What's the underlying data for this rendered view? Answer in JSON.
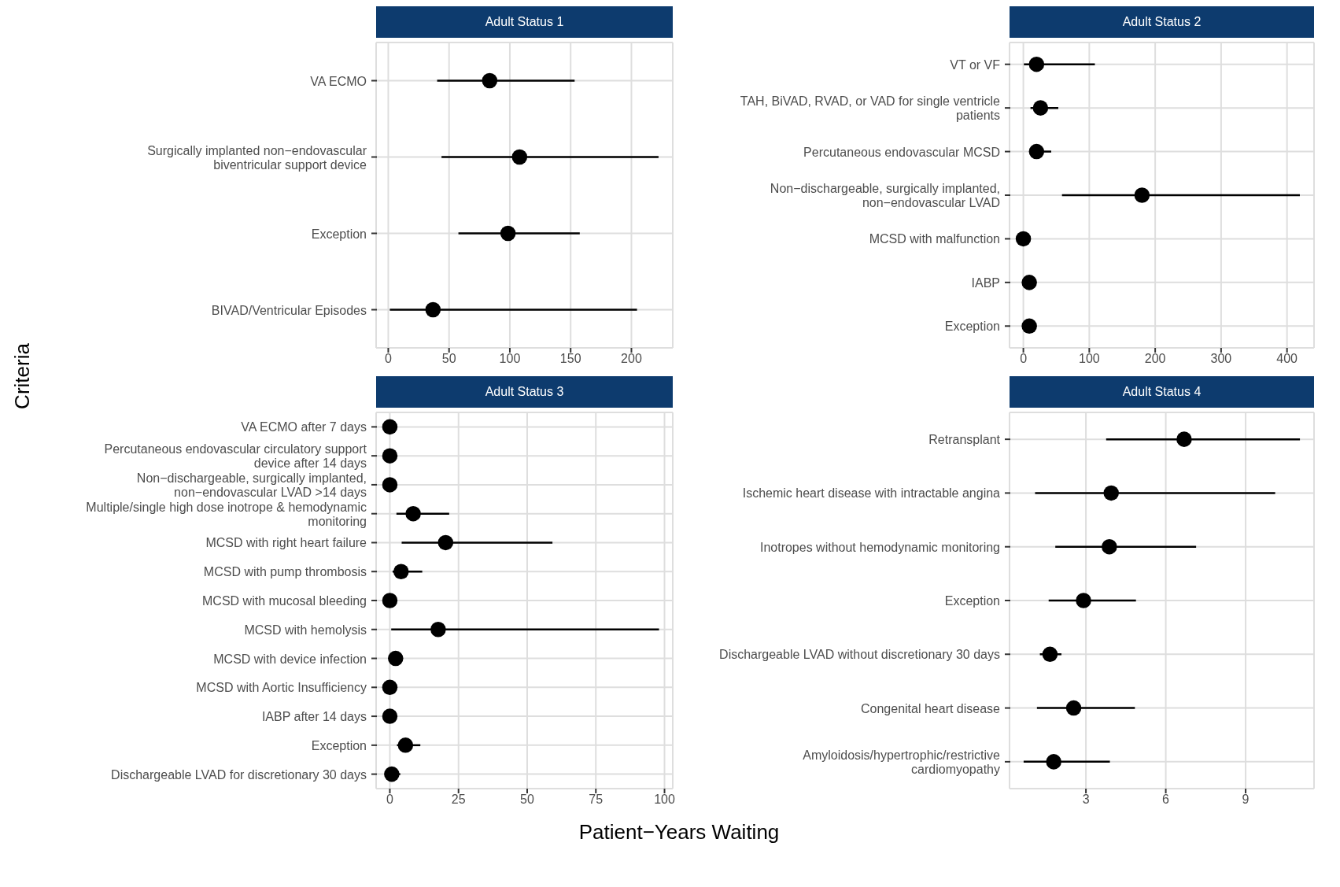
{
  "chart_data": [
    {
      "type": "scatter",
      "orientation": "horizontal",
      "title": "Adult Status 1",
      "ylabel": "Criteria",
      "categories": [
        "VA ECMO",
        "Surgically implanted non−endovascular biventricular support device",
        "Exception",
        "BIVAD/Ventricular Episodes"
      ],
      "values": [
        83.4,
        108,
        98.5,
        36.8
      ],
      "errors": [
        [
          40.2,
          153.3
        ],
        [
          43.8,
          222.3
        ],
        [
          57.7,
          157.5
        ],
        [
          1.3,
          204.6
        ]
      ],
      "color": "#000000",
      "marker": "circle",
      "xlim": [
        -10,
        234
      ],
      "xticks": [
        0,
        50,
        100,
        150,
        200
      ],
      "grid": true
    },
    {
      "type": "scatter",
      "orientation": "horizontal",
      "title": "Adult Status 2",
      "categories": [
        "VT or VF",
        "TAH, BiVAD, RVAD, or VAD for single ventricle patients",
        "Percutaneous endovascular MCSD",
        "Non−dischargeable, surgically implanted, non−endovascular LVAD",
        "MCSD with malfunction",
        "IABP",
        "Exception"
      ],
      "values": [
        20,
        26,
        20,
        180,
        0,
        9,
        9
      ],
      "errors": [
        [
          0.8,
          108.5
        ],
        [
          10.8,
          53
        ],
        [
          12,
          42.3
        ],
        [
          58.6,
          419.5
        ],
        null,
        null,
        null
      ],
      "color": "#000000",
      "marker": "circle",
      "xlim": [
        -21,
        441
      ],
      "xticks": [
        0,
        100,
        200,
        300,
        400
      ],
      "grid": true
    },
    {
      "type": "scatter",
      "orientation": "horizontal",
      "title": "Adult Status 3",
      "categories": [
        "VA ECMO after 7 days",
        "Percutaneous endovascular circulatory support device after 14 days",
        "Non−dischargeable, surgically implanted, non−endovascular LVAD >14 days",
        "Multiple/single high dose inotrope & hemodynamic monitoring",
        "MCSD with right heart failure",
        "MCSD with pump thrombosis",
        "MCSD with mucosal bleeding",
        "MCSD with hemolysis",
        "MCSD with device infection",
        "MCSD with Aortic Insufficiency",
        "IABP after 14 days",
        "Exception",
        "Dischargeable LVAD for discretionary 30 days"
      ],
      "values": [
        0,
        0,
        0,
        8.5,
        20.3,
        4.1,
        0,
        17.6,
        2.1,
        0,
        0,
        5.7,
        0.7
      ],
      "errors": [
        null,
        null,
        null,
        [
          2.4,
          21.6
        ],
        [
          4.3,
          59.2
        ],
        [
          1,
          11.8
        ],
        null,
        [
          0.5,
          98
        ],
        null,
        null,
        null,
        [
          2.6,
          11.1
        ],
        [
          0.7,
          3.8
        ]
      ],
      "color": "#000000",
      "marker": "circle",
      "xlim": [
        -5,
        103
      ],
      "xticks": [
        0,
        25,
        50,
        75,
        100
      ],
      "grid": true
    },
    {
      "type": "scatter",
      "orientation": "horizontal",
      "title": "Adult Status 4",
      "xlabel": "Patient−Years Waiting",
      "categories": [
        "Retransplant",
        "Ischemic heart disease with intractable angina",
        "Inotropes without hemodynamic monitoring",
        "Exception",
        "Dischargeable LVAD without discretionary 30 days",
        "Congenital heart disease",
        "Amyloidosis/hypertrophic/restrictive cardiomyopathy"
      ],
      "values": [
        6.69,
        3.95,
        3.88,
        2.91,
        1.65,
        2.54,
        1.79
      ],
      "errors": [
        [
          3.76,
          11.04
        ],
        [
          1.09,
          10.11
        ],
        [
          1.85,
          7.14
        ],
        [
          1.6,
          4.88
        ],
        [
          1.27,
          2.08
        ],
        [
          1.16,
          4.84
        ],
        [
          0.66,
          3.9
        ]
      ],
      "color": "#000000",
      "marker": "circle",
      "xlim": [
        0.13,
        11.57
      ],
      "xticks": [
        3,
        6,
        9
      ],
      "grid": true
    }
  ]
}
